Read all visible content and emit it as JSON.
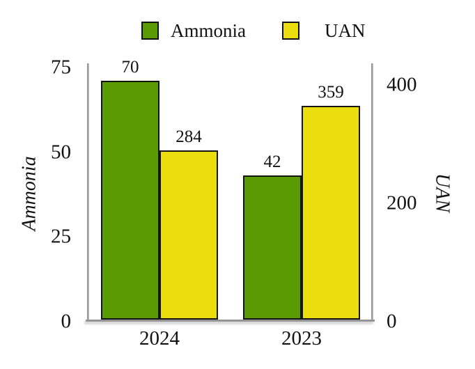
{
  "chart_data": {
    "type": "bar",
    "title": "",
    "categories": [
      "2024",
      "2023"
    ],
    "series": [
      {
        "name": "Ammonia",
        "axis": "left",
        "color": "#5a9b04",
        "values": [
          70,
          42
        ]
      },
      {
        "name": "UAN",
        "axis": "right",
        "color": "#ecdd0e",
        "values": [
          284,
          359
        ]
      }
    ],
    "ylabel_left": "Ammonia",
    "ylabel_right": "UAN",
    "left_axis": {
      "ticks": [
        0,
        25,
        50,
        75
      ],
      "ylim": [
        0,
        75
      ]
    },
    "right_axis": {
      "ticks": [
        0,
        200,
        400
      ],
      "ylim": [
        0,
        400
      ]
    },
    "legend_position": "top",
    "grid": false,
    "bar_labels": true,
    "bar_border_color": "#141414",
    "axis_line_color": "#949494"
  },
  "legend": {
    "items": [
      {
        "label": "Ammonia",
        "color": "#5a9b04"
      },
      {
        "label": "UAN",
        "color": "#ecdd0e"
      }
    ]
  }
}
